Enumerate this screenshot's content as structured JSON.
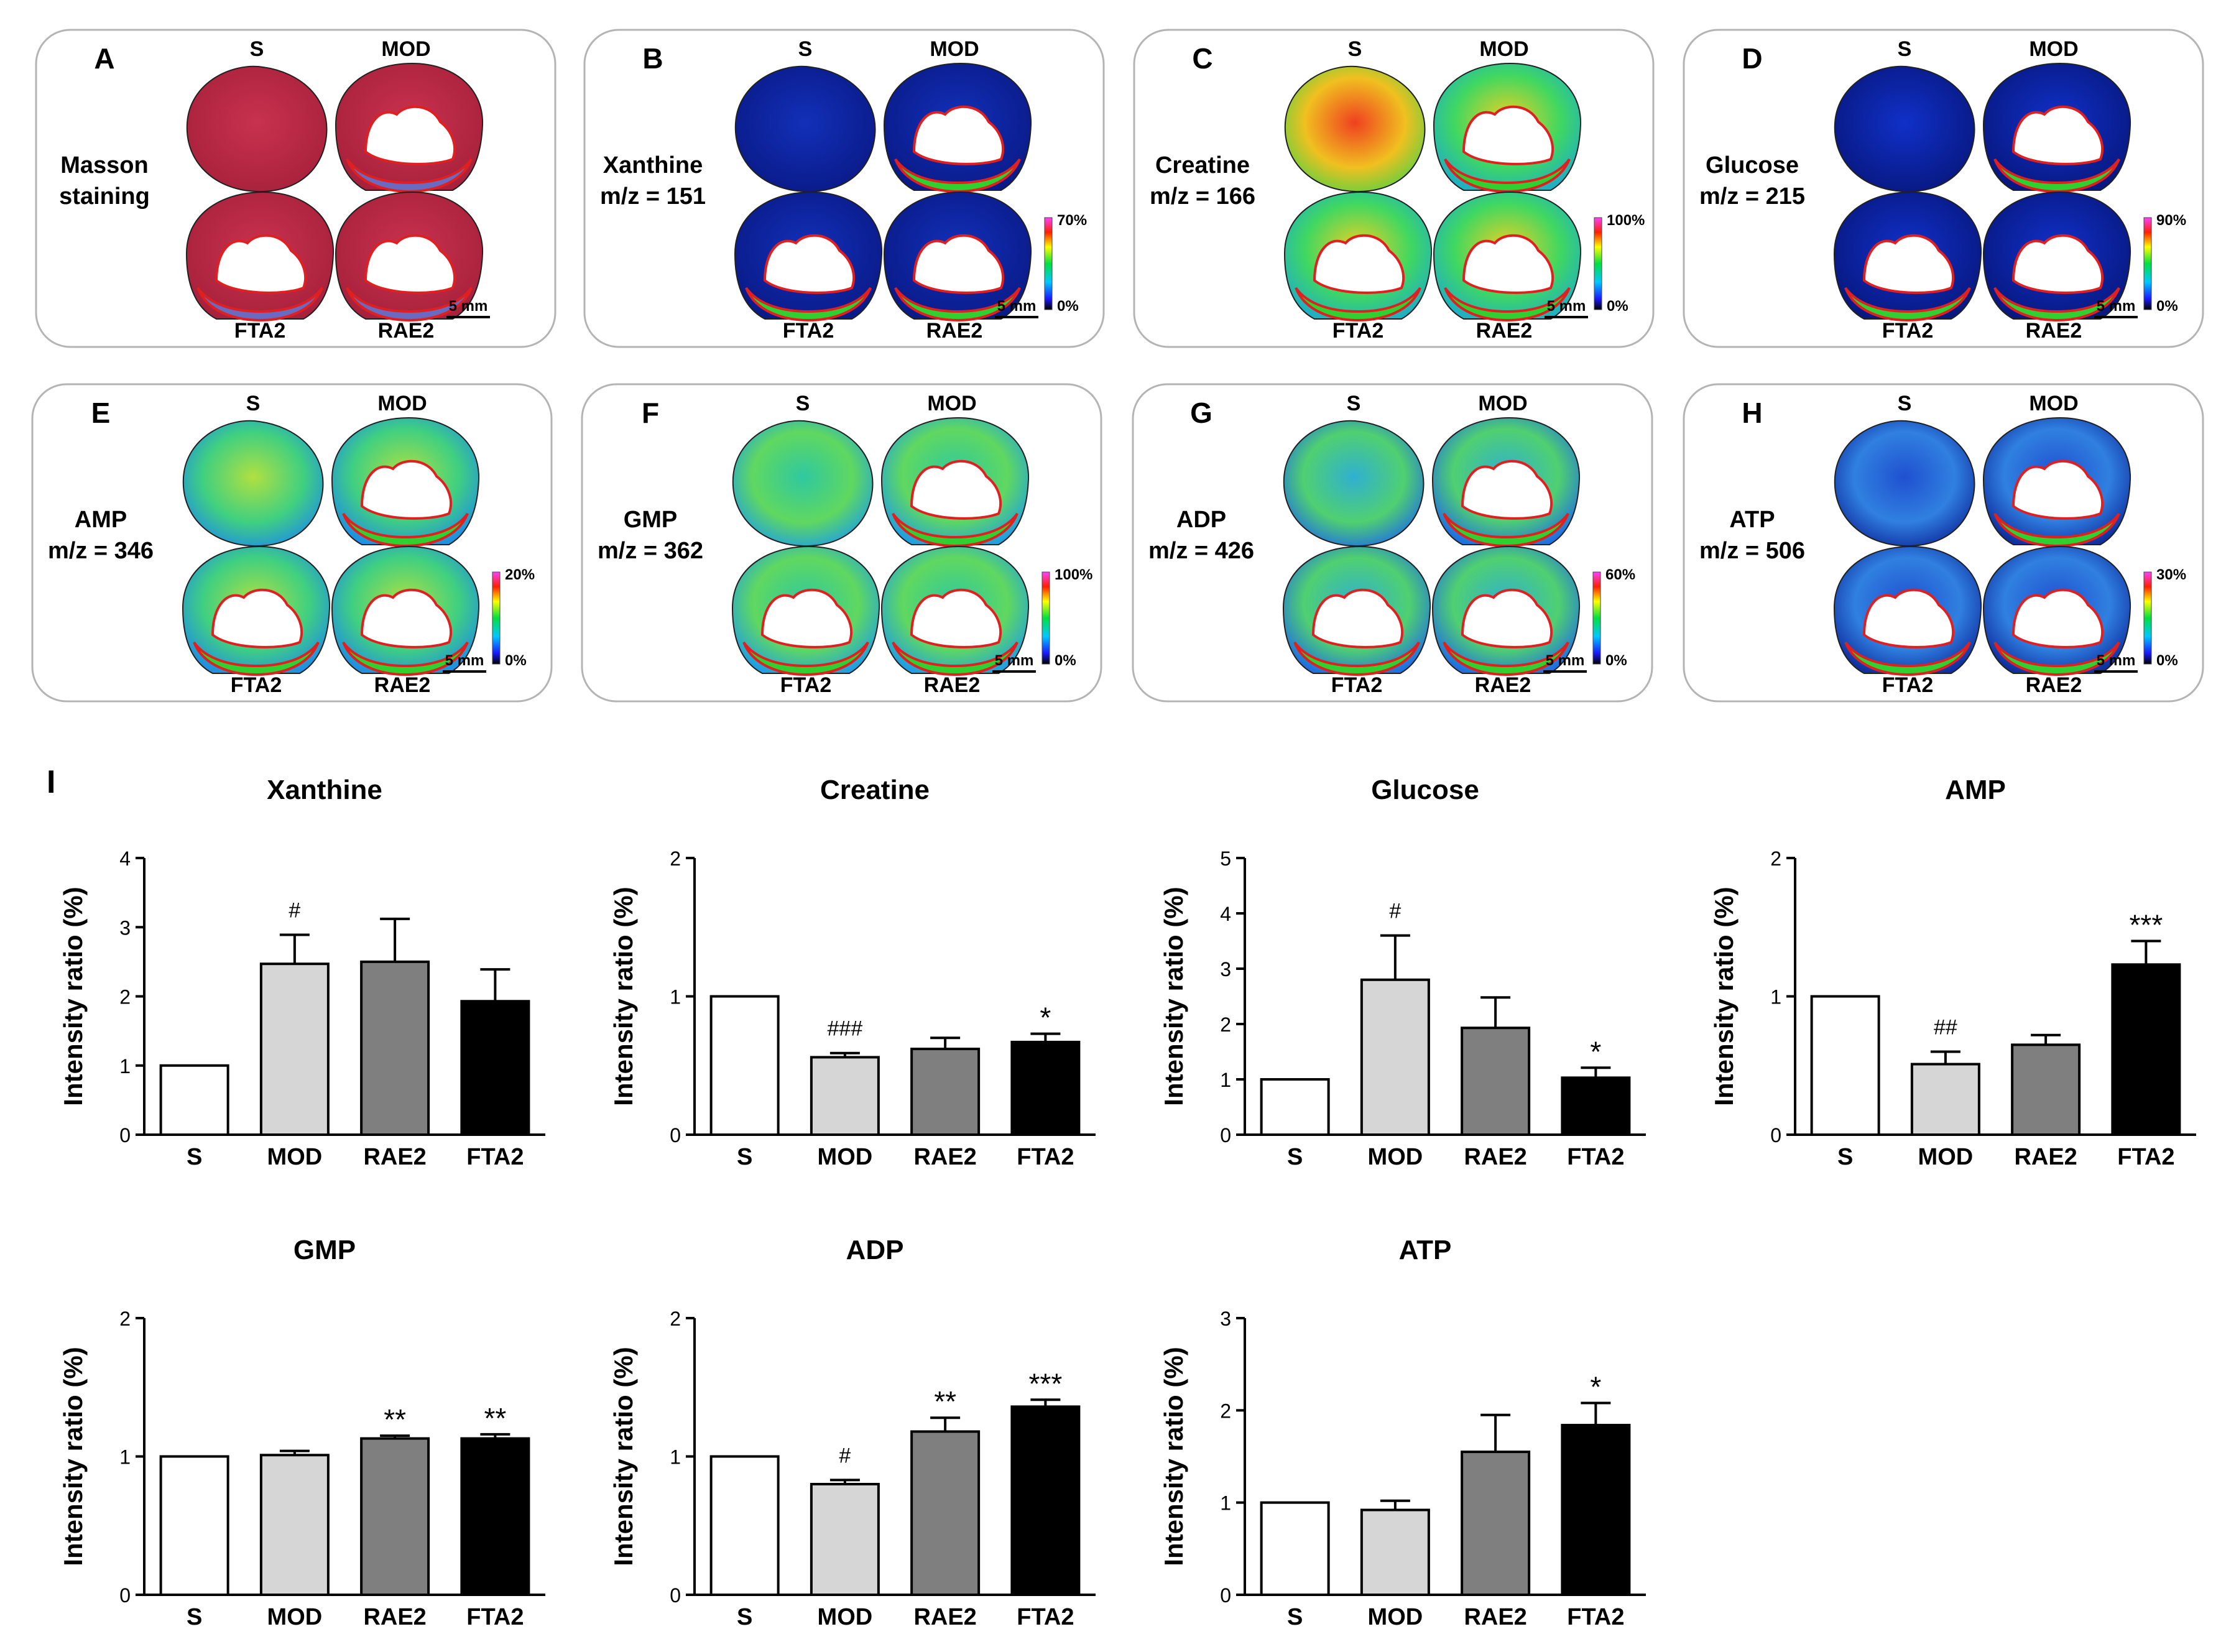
{
  "scale_bar": "5 mm",
  "image_panels": [
    {
      "letter": "A",
      "name": "Masson staining",
      "mz": "",
      "lines": [
        "Masson",
        "staining"
      ],
      "map": "masson",
      "cb_max": "",
      "cb_min": ""
    },
    {
      "letter": "B",
      "name": "Xanthine",
      "mz": "m/z = 151",
      "lines": [
        "Xanthine",
        "m/z = 151"
      ],
      "map": "xanthine",
      "cb_max": "70%",
      "cb_min": "0%"
    },
    {
      "letter": "C",
      "name": "Creatine",
      "mz": "m/z = 166",
      "lines": [
        "Creatine",
        "m/z = 166"
      ],
      "map": "creatine",
      "cb_max": "100%",
      "cb_min": "0%"
    },
    {
      "letter": "D",
      "name": "Glucose",
      "mz": "m/z = 215",
      "lines": [
        "Glucose",
        "m/z = 215"
      ],
      "map": "glucose",
      "cb_max": "90%",
      "cb_min": "0%"
    },
    {
      "letter": "E",
      "name": "AMP",
      "mz": "m/z = 346",
      "lines": [
        "AMP",
        "m/z = 346"
      ],
      "map": "amp",
      "cb_max": "20%",
      "cb_min": "0%"
    },
    {
      "letter": "F",
      "name": "GMP",
      "mz": "m/z = 362",
      "lines": [
        "GMP",
        "m/z = 362"
      ],
      "map": "gmp",
      "cb_max": "100%",
      "cb_min": "0%"
    },
    {
      "letter": "G",
      "name": "ADP",
      "mz": "m/z = 426",
      "lines": [
        "ADP",
        "m/z = 426"
      ],
      "map": "adp",
      "cb_max": "60%",
      "cb_min": "0%"
    },
    {
      "letter": "H",
      "name": "ATP",
      "mz": "m/z = 506",
      "lines": [
        "ATP",
        "m/z = 506"
      ],
      "map": "atp",
      "cb_max": "30%",
      "cb_min": "0%"
    }
  ],
  "section_labels": {
    "top_left": "S",
    "top_right": "MOD",
    "bottom_left": "FTA2",
    "bottom_right": "RAE2"
  },
  "chart_panel_label": "I",
  "chart_data": [
    {
      "type": "bar",
      "title": "Xanthine",
      "ylabel": "Intensity ratio (%)",
      "categories": [
        "S",
        "MOD",
        "RAE2",
        "FTA2"
      ],
      "values": [
        1,
        2.47,
        2.5,
        1.93
      ],
      "errors": [
        0,
        0.42,
        0.62,
        0.46
      ],
      "ylim": [
        0,
        4
      ],
      "yticks": [
        "0",
        "1",
        "2",
        "3",
        "4"
      ],
      "annotations": [
        "",
        "#",
        "",
        ""
      ]
    },
    {
      "type": "bar",
      "title": "Creatine",
      "ylabel": "Intensity ratio (%)",
      "categories": [
        "S",
        "MOD",
        "RAE2",
        "FTA2"
      ],
      "values": [
        1,
        0.56,
        0.62,
        0.67
      ],
      "errors": [
        0,
        0.03,
        0.08,
        0.06
      ],
      "ylim": [
        0,
        2
      ],
      "yticks": [
        "0",
        "1",
        "2"
      ],
      "annotations": [
        "",
        "###",
        "",
        "*"
      ]
    },
    {
      "type": "bar",
      "title": "Glucose",
      "ylabel": "Intensity ratio (%)",
      "categories": [
        "S",
        "MOD",
        "RAE2",
        "FTA2"
      ],
      "values": [
        1,
        2.8,
        1.93,
        1.03
      ],
      "errors": [
        0,
        0.8,
        0.55,
        0.18
      ],
      "ylim": [
        0,
        5
      ],
      "yticks": [
        "0",
        "1",
        "2",
        "3",
        "4",
        "5"
      ],
      "annotations": [
        "",
        "#",
        "",
        "*"
      ]
    },
    {
      "type": "bar",
      "title": "AMP",
      "ylabel": "Intensity ratio (%)",
      "categories": [
        "S",
        "MOD",
        "RAE2",
        "FTA2"
      ],
      "values": [
        1,
        0.51,
        0.65,
        1.23
      ],
      "errors": [
        0,
        0.09,
        0.07,
        0.17
      ],
      "ylim": [
        0,
        2
      ],
      "yticks": [
        "0",
        "1",
        "2"
      ],
      "annotations": [
        "",
        "##",
        "",
        "***"
      ]
    },
    {
      "type": "bar",
      "title": "GMP",
      "ylabel": "Intensity ratio (%)",
      "categories": [
        "S",
        "MOD",
        "RAE2",
        "FTA2"
      ],
      "values": [
        1,
        1.01,
        1.13,
        1.13
      ],
      "errors": [
        0,
        0.03,
        0.02,
        0.03
      ],
      "ylim": [
        0,
        2
      ],
      "yticks": [
        "0",
        "1",
        "2"
      ],
      "annotations": [
        "",
        "",
        "**",
        "**"
      ]
    },
    {
      "type": "bar",
      "title": "ADP",
      "ylabel": "Intensity ratio (%)",
      "categories": [
        "S",
        "MOD",
        "RAE2",
        "FTA2"
      ],
      "values": [
        1,
        0.8,
        1.18,
        1.36
      ],
      "errors": [
        0,
        0.03,
        0.1,
        0.05
      ],
      "ylim": [
        0,
        2
      ],
      "yticks": [
        "0",
        "1",
        "2"
      ],
      "annotations": [
        "",
        "#",
        "**",
        "***"
      ]
    },
    {
      "type": "bar",
      "title": "ATP",
      "ylabel": "Intensity ratio (%)",
      "categories": [
        "S",
        "MOD",
        "RAE2",
        "FTA2"
      ],
      "values": [
        1,
        0.92,
        1.55,
        1.84
      ],
      "errors": [
        0,
        0.1,
        0.4,
        0.24
      ],
      "ylim": [
        0,
        3
      ],
      "yticks": [
        "0",
        "1",
        "2",
        "3"
      ],
      "annotations": [
        "",
        "",
        "",
        "*"
      ]
    }
  ],
  "bar_colors": {
    "S": "#ffffff",
    "MOD": "#d6d6d6",
    "RAE2": "#7f7f7f",
    "FTA2": "#000000"
  }
}
